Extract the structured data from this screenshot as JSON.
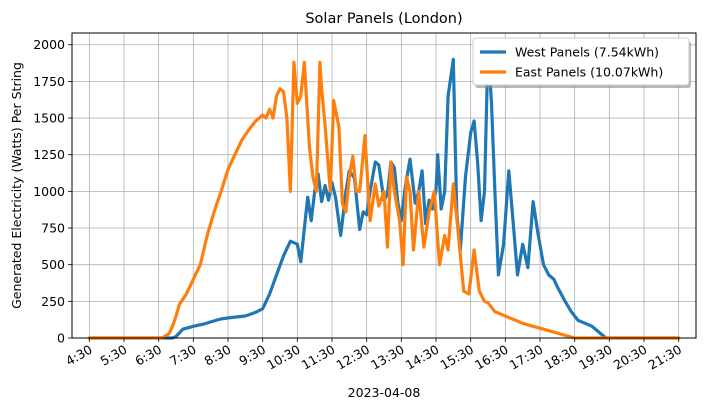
{
  "chart_data": {
    "type": "line",
    "title": "Solar Panels (London)",
    "xlabel": "2023-04-08",
    "ylabel": "Generated Electricity (Watts) Per String",
    "xlim_hours": [
      4.0,
      22.0
    ],
    "ylim": [
      0,
      2080
    ],
    "x_tick_labels": [
      "4:30",
      "5:30",
      "6:30",
      "7:30",
      "8:30",
      "9:30",
      "10:30",
      "11:30",
      "12:30",
      "13:30",
      "14:30",
      "15:30",
      "16:30",
      "17:30",
      "18:30",
      "19:30",
      "20:30",
      "21:30"
    ],
    "x_ticks_hours": [
      4.5,
      5.5,
      6.5,
      7.5,
      8.5,
      9.5,
      10.5,
      11.5,
      12.5,
      13.5,
      14.5,
      15.5,
      16.5,
      17.5,
      18.5,
      19.5,
      20.5,
      21.5
    ],
    "y_ticks": [
      0,
      250,
      500,
      750,
      1000,
      1250,
      1500,
      1750,
      2000
    ],
    "grid": true,
    "legend_position": "top-right",
    "series": [
      {
        "name": "West Panels (7.54kWh)",
        "color": "#1f77b4",
        "x": [
          4.5,
          6.5,
          6.9,
          7.0,
          7.2,
          7.5,
          7.8,
          8.0,
          8.3,
          8.6,
          9.0,
          9.3,
          9.5,
          9.7,
          9.9,
          10.1,
          10.3,
          10.5,
          10.6,
          10.8,
          10.9,
          11.0,
          11.1,
          11.2,
          11.3,
          11.4,
          11.5,
          11.6,
          11.75,
          11.9,
          12.0,
          12.15,
          12.3,
          12.4,
          12.5,
          12.6,
          12.75,
          12.85,
          13.0,
          13.1,
          13.2,
          13.3,
          13.4,
          13.5,
          13.6,
          13.75,
          13.9,
          14.0,
          14.1,
          14.2,
          14.3,
          14.4,
          14.5,
          14.55,
          14.65,
          14.75,
          14.85,
          15.0,
          15.1,
          15.2,
          15.35,
          15.5,
          15.6,
          15.7,
          15.8,
          15.9,
          16.0,
          16.1,
          16.2,
          16.3,
          16.45,
          16.6,
          16.75,
          16.85,
          17.0,
          17.15,
          17.3,
          17.45,
          17.6,
          17.75,
          17.9,
          18.0,
          18.2,
          18.4,
          18.6,
          18.8,
          19.0,
          19.2,
          19.4,
          19.5,
          19.6,
          21.5
        ],
        "y": [
          0,
          0,
          0,
          10,
          60,
          80,
          95,
          110,
          130,
          140,
          150,
          175,
          200,
          300,
          430,
          560,
          660,
          640,
          520,
          960,
          800,
          1000,
          1120,
          930,
          1040,
          940,
          1060,
          960,
          700,
          1000,
          1140,
          1090,
          740,
          860,
          840,
          1000,
          1200,
          1180,
          940,
          980,
          1200,
          1160,
          920,
          800,
          1010,
          1220,
          920,
          1000,
          1140,
          780,
          940,
          880,
          1010,
          1250,
          880,
          1000,
          1650,
          1900,
          850,
          600,
          1100,
          1400,
          1480,
          1200,
          800,
          1000,
          1980,
          1600,
          1000,
          430,
          640,
          1140,
          720,
          430,
          640,
          480,
          930,
          700,
          500,
          430,
          400,
          350,
          260,
          180,
          120,
          100,
          80,
          40,
          0,
          0,
          0,
          0
        ]
      },
      {
        "name": "East Panels (10.07kWh)",
        "color": "#ff7f0e",
        "x": [
          4.5,
          6.6,
          6.8,
          6.9,
          7.0,
          7.1,
          7.3,
          7.5,
          7.7,
          7.9,
          8.1,
          8.3,
          8.5,
          8.7,
          8.9,
          9.1,
          9.3,
          9.5,
          9.6,
          9.7,
          9.8,
          9.9,
          10.0,
          10.1,
          10.2,
          10.3,
          10.4,
          10.5,
          10.6,
          10.7,
          10.8,
          10.85,
          10.95,
          11.05,
          11.15,
          11.2,
          11.3,
          11.45,
          11.55,
          11.7,
          11.8,
          11.9,
          12.0,
          12.1,
          12.2,
          12.3,
          12.45,
          12.6,
          12.75,
          12.85,
          13.0,
          13.1,
          13.2,
          13.3,
          13.45,
          13.55,
          13.65,
          13.75,
          13.85,
          14.0,
          14.15,
          14.3,
          14.45,
          14.6,
          14.75,
          14.85,
          15.0,
          15.15,
          15.3,
          15.45,
          15.6,
          15.75,
          15.9,
          16.0,
          16.2,
          16.4,
          16.6,
          16.8,
          17.0,
          17.3,
          17.6,
          17.9,
          18.2,
          18.5,
          18.8,
          19.1,
          19.3,
          19.5,
          19.7,
          21.5
        ],
        "y": [
          0,
          0,
          30,
          80,
          150,
          230,
          300,
          400,
          500,
          700,
          860,
          1000,
          1150,
          1250,
          1350,
          1420,
          1480,
          1520,
          1500,
          1560,
          1500,
          1650,
          1700,
          1680,
          1500,
          1000,
          1880,
          1600,
          1650,
          1880,
          1500,
          1300,
          1100,
          1000,
          1880,
          1700,
          1450,
          1000,
          1620,
          1440,
          920,
          860,
          1100,
          1240,
          1000,
          1000,
          1380,
          800,
          1050,
          900,
          1000,
          620,
          1200,
          1000,
          800,
          500,
          1100,
          1000,
          600,
          1000,
          620,
          860,
          1000,
          500,
          700,
          600,
          1050,
          700,
          320,
          300,
          600,
          320,
          250,
          240,
          180,
          160,
          140,
          120,
          100,
          80,
          60,
          40,
          20,
          0,
          0,
          0,
          0,
          0,
          0,
          0
        ]
      }
    ]
  }
}
